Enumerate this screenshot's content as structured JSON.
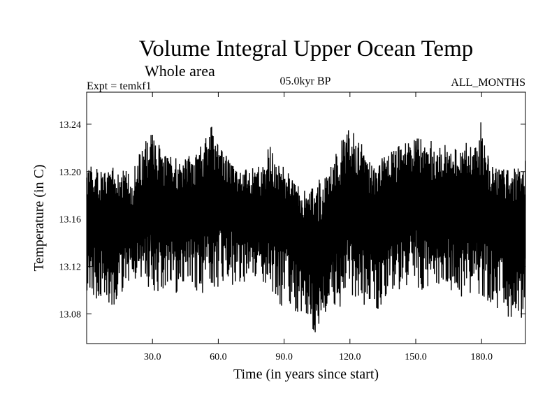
{
  "chart_data": {
    "type": "line",
    "title": "Volume Integral Upper Ocean Temp",
    "subtitle": "Whole area",
    "experiment": "Expt = temkf1",
    "period": "05.0kyr BP",
    "months": "ALL_MONTHS",
    "xlabel": "Time (in years since start)",
    "ylabel": "Temperature (in C)",
    "xlim": [
      0,
      200
    ],
    "ylim": [
      13.055,
      13.267
    ],
    "x_ticks": [
      30,
      60,
      90,
      120,
      150,
      180
    ],
    "x_tick_labels": [
      "30.0",
      "60.0",
      "90.0",
      "120.0",
      "150.0",
      "180.0"
    ],
    "y_ticks": [
      13.08,
      13.12,
      13.16,
      13.2,
      13.24
    ],
    "y_tick_labels": [
      "13.08",
      "13.12",
      "13.16",
      "13.20",
      "13.24"
    ],
    "samples_per_year": 12,
    "series": [
      {
        "name": "Volume Integral Upper Ocean Temp",
        "color": "#000000",
        "description": "monthly values oscillating about a slowly varying mean",
        "mean_x": [
          0,
          10,
          20,
          30,
          40,
          50,
          60,
          70,
          80,
          90,
          100,
          105,
          110,
          120,
          130,
          140,
          150,
          160,
          170,
          180,
          190,
          200
        ],
        "mean_y": [
          13.16,
          13.158,
          13.152,
          13.175,
          13.165,
          13.172,
          13.182,
          13.17,
          13.162,
          13.168,
          13.145,
          13.13,
          13.15,
          13.172,
          13.162,
          13.168,
          13.178,
          13.172,
          13.166,
          13.17,
          13.16,
          13.15
        ],
        "upper_envelope_x": [
          0,
          10,
          20,
          30,
          35,
          40,
          50,
          58,
          60,
          70,
          80,
          82,
          90,
          100,
          110,
          118,
          125,
          130,
          140,
          150,
          160,
          170,
          180,
          185,
          190,
          200
        ],
        "upper_envelope_y": [
          13.205,
          13.205,
          13.2,
          13.24,
          13.215,
          13.215,
          13.215,
          13.245,
          13.22,
          13.2,
          13.205,
          13.23,
          13.195,
          13.185,
          13.2,
          13.245,
          13.225,
          13.205,
          13.22,
          13.23,
          13.225,
          13.22,
          13.245,
          13.205,
          13.2,
          13.21
        ],
        "lower_envelope_x": [
          0,
          10,
          20,
          30,
          40,
          50,
          60,
          70,
          80,
          90,
          100,
          104,
          110,
          120,
          130,
          140,
          150,
          160,
          170,
          180,
          190,
          197,
          200
        ],
        "lower_envelope_y": [
          13.1,
          13.08,
          13.11,
          13.1,
          13.095,
          13.095,
          13.1,
          13.105,
          13.1,
          13.085,
          13.075,
          13.058,
          13.075,
          13.095,
          13.08,
          13.095,
          13.1,
          13.1,
          13.095,
          13.09,
          13.08,
          13.068,
          13.09
        ]
      }
    ]
  }
}
